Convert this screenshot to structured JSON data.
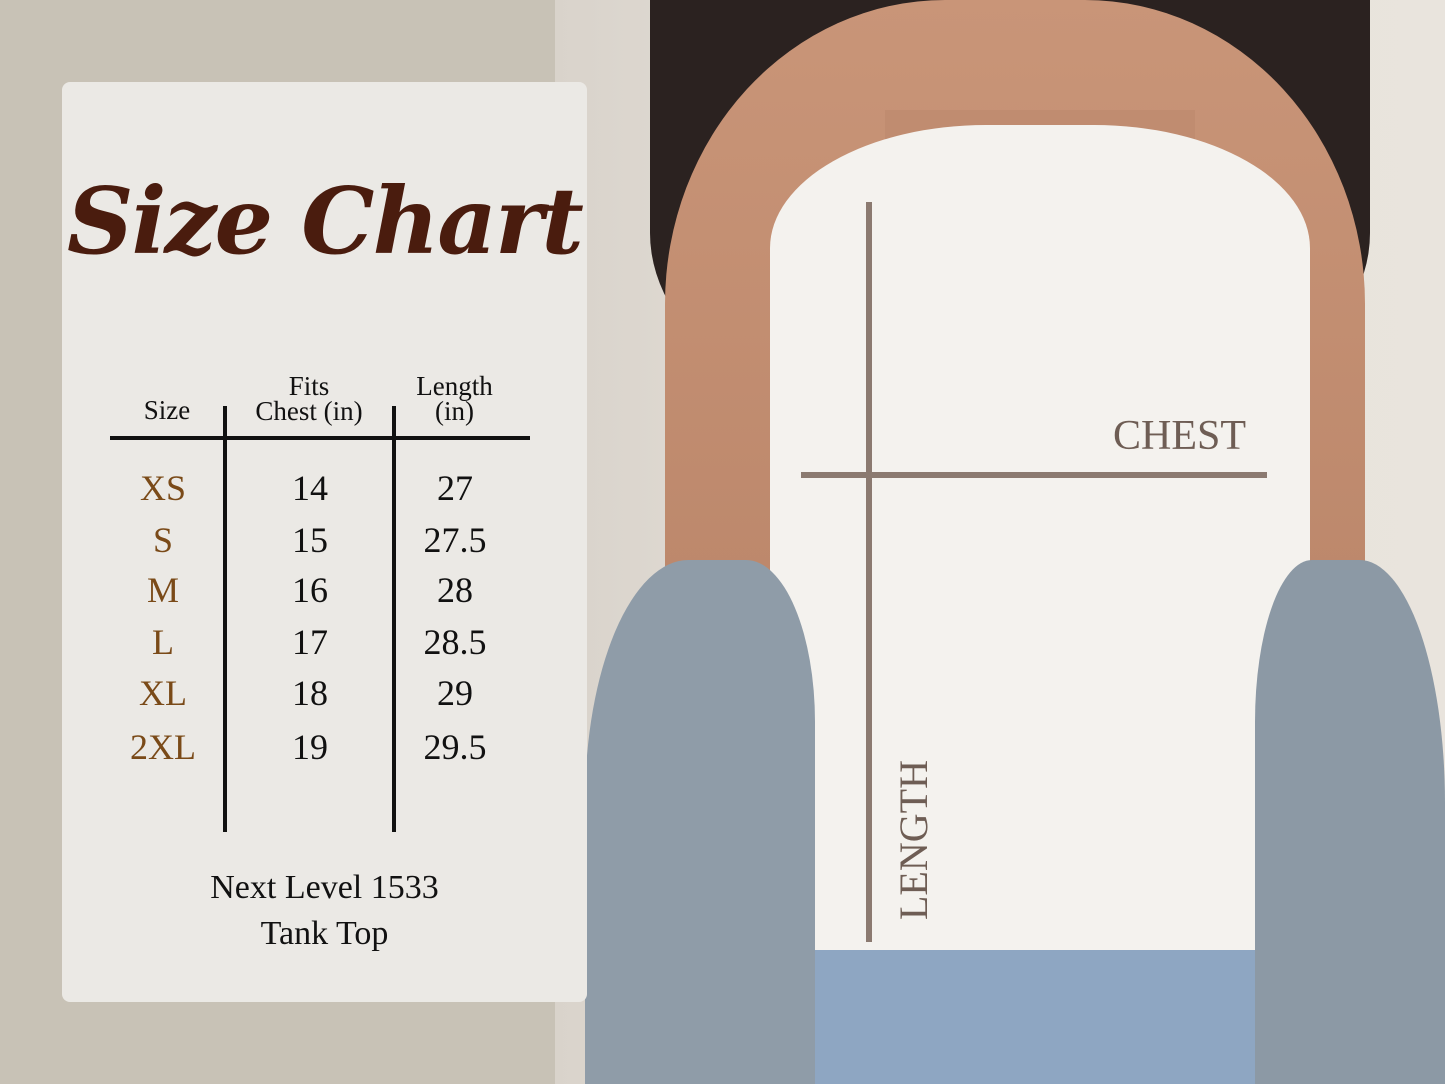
{
  "title": "Size Chart",
  "table": {
    "header_lines": {
      "size": "Size",
      "chest_1": "Fits",
      "chest_2": "Chest (in)",
      "length_1": "Length",
      "length_2": "(in)"
    },
    "rows": [
      {
        "size": "XS",
        "chest": "14",
        "length": "27"
      },
      {
        "size": "S",
        "chest": "15",
        "length": "27.5"
      },
      {
        "size": "M",
        "chest": "16",
        "length": "28"
      },
      {
        "size": "L",
        "chest": "17",
        "length": "28.5"
      },
      {
        "size": "XL",
        "chest": "18",
        "length": "29"
      },
      {
        "size": "2XL",
        "chest": "19",
        "length": "29.5"
      }
    ]
  },
  "product": {
    "line1": "Next Level 1533",
    "line2": "Tank Top"
  },
  "photo_labels": {
    "chest": "CHEST",
    "length": "LENGTH"
  },
  "colors": {
    "title": "#4a1c0e",
    "size_text": "#7a4a18",
    "measure_lines": "#8b7a70"
  }
}
